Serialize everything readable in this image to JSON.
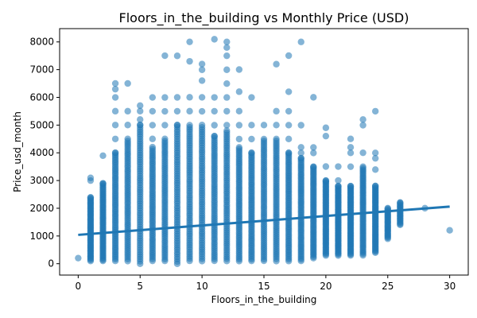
{
  "chart_data": {
    "type": "scatter",
    "title": "Floors_in_the_building vs Monthly Price (USD)",
    "xlabel": "Floors_in_the_building",
    "ylabel": "Price_usd_month",
    "xlim": [
      -1.5,
      31.5
    ],
    "ylim": [
      -410,
      8480
    ],
    "xticks": [
      0,
      5,
      10,
      15,
      20,
      25,
      30
    ],
    "yticks": [
      0,
      1000,
      2000,
      3000,
      4000,
      5000,
      6000,
      7000,
      8000
    ],
    "grid": false,
    "point_color": "#1f77b4",
    "line_color": "#1f77b4",
    "regression_line": {
      "x": [
        0,
        30
      ],
      "y": [
        1040,
        2060
      ]
    },
    "points_by_floor": [
      {
        "x": 0,
        "range": [
          200,
          200
        ],
        "extra": []
      },
      {
        "x": 1,
        "range": [
          100,
          2400
        ],
        "extra": [
          3000,
          3100
        ]
      },
      {
        "x": 2,
        "range": [
          100,
          2900
        ],
        "extra": [
          3900
        ]
      },
      {
        "x": 3,
        "range": [
          100,
          4000
        ],
        "extra": [
          4500,
          5000,
          5500,
          6000,
          6300,
          6500
        ]
      },
      {
        "x": 4,
        "range": [
          100,
          4500
        ],
        "extra": [
          5000,
          5500,
          6500
        ]
      },
      {
        "x": 5,
        "range": [
          0,
          5000
        ],
        "extra": [
          5200,
          5500,
          5700
        ]
      },
      {
        "x": 6,
        "range": [
          100,
          4200
        ],
        "extra": [
          4500,
          5000,
          5500,
          6000
        ]
      },
      {
        "x": 7,
        "range": [
          100,
          4500
        ],
        "extra": [
          5000,
          5500,
          6000,
          7500
        ]
      },
      {
        "x": 8,
        "range": [
          0,
          5000
        ],
        "extra": [
          5500,
          6000,
          7500
        ]
      },
      {
        "x": 9,
        "range": [
          100,
          5000
        ],
        "extra": [
          5500,
          6000,
          7300,
          8000
        ]
      },
      {
        "x": 10,
        "range": [
          100,
          5000
        ],
        "extra": [
          5500,
          6000,
          6600,
          7000,
          7200
        ]
      },
      {
        "x": 11,
        "range": [
          100,
          4600
        ],
        "extra": [
          5000,
          5500,
          6000,
          8100
        ]
      },
      {
        "x": 12,
        "range": [
          100,
          4800
        ],
        "extra": [
          5000,
          5500,
          6000,
          6500,
          7000,
          7500,
          7800,
          8000
        ]
      },
      {
        "x": 13,
        "range": [
          100,
          4200
        ],
        "extra": [
          4500,
          5000,
          5500,
          6200,
          7000
        ]
      },
      {
        "x": 14,
        "range": [
          100,
          4000
        ],
        "extra": [
          4500,
          5000,
          6000
        ]
      },
      {
        "x": 15,
        "range": [
          100,
          4500
        ],
        "extra": [
          5000
        ]
      },
      {
        "x": 16,
        "range": [
          100,
          4500
        ],
        "extra": [
          5000,
          5500,
          7200
        ]
      },
      {
        "x": 17,
        "range": [
          100,
          4000
        ],
        "extra": [
          4500,
          5000,
          5500,
          6200,
          7500
        ]
      },
      {
        "x": 18,
        "range": [
          100,
          3800
        ],
        "extra": [
          4000,
          4200,
          5000,
          8000
        ]
      },
      {
        "x": 19,
        "range": [
          200,
          3500
        ],
        "extra": [
          4000,
          4200,
          6000
        ]
      },
      {
        "x": 20,
        "range": [
          300,
          3000
        ],
        "extra": [
          3500,
          4600,
          4900
        ]
      },
      {
        "x": 21,
        "range": [
          300,
          2800
        ],
        "extra": [
          3000,
          3500
        ]
      },
      {
        "x": 22,
        "range": [
          300,
          2800
        ],
        "extra": [
          3500,
          4000,
          4200,
          4500
        ]
      },
      {
        "x": 23,
        "range": [
          300,
          3500
        ],
        "extra": [
          4000,
          5000,
          5200
        ]
      },
      {
        "x": 24,
        "range": [
          400,
          2800
        ],
        "extra": [
          3400,
          3800,
          4000,
          5500
        ]
      },
      {
        "x": 25,
        "range": [
          900,
          2000
        ],
        "extra": []
      },
      {
        "x": 26,
        "range": [
          1400,
          2200
        ],
        "extra": []
      },
      {
        "x": 28,
        "range": [
          2000,
          2000
        ],
        "extra": []
      },
      {
        "x": 30,
        "range": [
          1200,
          1200
        ],
        "extra": []
      }
    ]
  }
}
